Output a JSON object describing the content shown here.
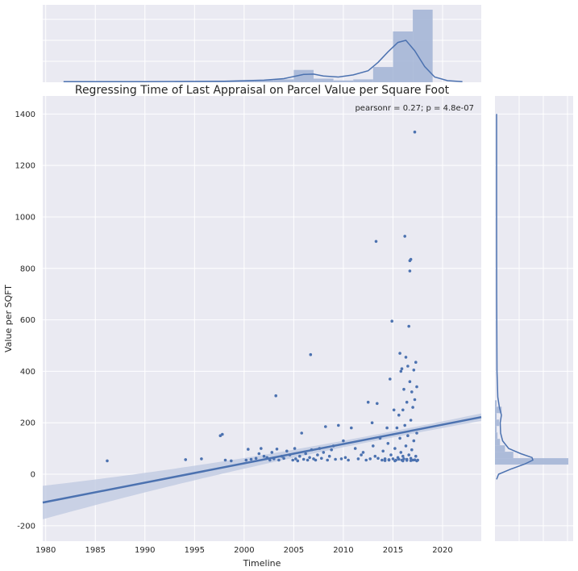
{
  "chart_data": {
    "type": "scatter",
    "title": "Regressing Time of Last Appraisal on Parcel Value per Square Foot",
    "xlabel": "Timeline",
    "ylabel": "Value per SQFT",
    "annotation": "pearsonr = 0.27; p = 4.8e-07",
    "xlim": [
      1979.7,
      2023.9
    ],
    "ylim": [
      -260,
      1470
    ],
    "xticks": [
      1980,
      1985,
      1990,
      1995,
      2000,
      2005,
      2010,
      2015,
      2020
    ],
    "yticks": [
      -200,
      0,
      200,
      400,
      600,
      800,
      1000,
      1200,
      1400
    ],
    "grid": true,
    "colors": {
      "background": "#eaeaf2",
      "grid": "#ffffff",
      "series": "#4c72b0",
      "band": "#c3cde3",
      "hist": "#a5b6d6"
    },
    "regression": {
      "x0": 1979.7,
      "y0": -110,
      "x1": 2023.9,
      "y1": 222,
      "ci_width_ends": 65,
      "ci_width_center": 12,
      "ci_center_x": 2014
    },
    "points": [
      [
        1986.2,
        52
      ],
      [
        1994.1,
        57
      ],
      [
        1995.7,
        60
      ],
      [
        1997.6,
        150
      ],
      [
        1997.8,
        155
      ],
      [
        1998.1,
        55
      ],
      [
        1998.7,
        52
      ],
      [
        2000.2,
        55
      ],
      [
        2000.4,
        97
      ],
      [
        2000.7,
        58
      ],
      [
        2001.2,
        62
      ],
      [
        2001.5,
        80
      ],
      [
        2001.7,
        100
      ],
      [
        2002.0,
        70
      ],
      [
        2002.3,
        65
      ],
      [
        2002.6,
        55
      ],
      [
        2002.8,
        85
      ],
      [
        2003.0,
        60
      ],
      [
        2003.2,
        305
      ],
      [
        2003.3,
        98
      ],
      [
        2003.5,
        55
      ],
      [
        2003.8,
        70
      ],
      [
        2004.0,
        62
      ],
      [
        2004.3,
        90
      ],
      [
        2004.6,
        75
      ],
      [
        2004.9,
        55
      ],
      [
        2005.1,
        100
      ],
      [
        2005.2,
        60
      ],
      [
        2005.4,
        52
      ],
      [
        2005.6,
        70
      ],
      [
        2005.8,
        160
      ],
      [
        2006.0,
        58
      ],
      [
        2006.2,
        80
      ],
      [
        2006.4,
        55
      ],
      [
        2006.6,
        65
      ],
      [
        2006.7,
        465
      ],
      [
        2006.8,
        95
      ],
      [
        2007.0,
        60
      ],
      [
        2007.2,
        55
      ],
      [
        2007.4,
        75
      ],
      [
        2007.6,
        100
      ],
      [
        2007.8,
        62
      ],
      [
        2008.0,
        85
      ],
      [
        2008.2,
        185
      ],
      [
        2008.4,
        55
      ],
      [
        2008.6,
        70
      ],
      [
        2008.8,
        95
      ],
      [
        2009.0,
        110
      ],
      [
        2009.2,
        58
      ],
      [
        2009.5,
        190
      ],
      [
        2009.8,
        60
      ],
      [
        2010.0,
        130
      ],
      [
        2010.2,
        65
      ],
      [
        2010.5,
        55
      ],
      [
        2010.8,
        180
      ],
      [
        2011.2,
        100
      ],
      [
        2011.5,
        60
      ],
      [
        2011.8,
        75
      ],
      [
        2012.0,
        85
      ],
      [
        2012.3,
        55
      ],
      [
        2012.5,
        280
      ],
      [
        2012.7,
        60
      ],
      [
        2012.9,
        200
      ],
      [
        2013.0,
        110
      ],
      [
        2013.2,
        70
      ],
      [
        2013.3,
        905
      ],
      [
        2013.4,
        275
      ],
      [
        2013.5,
        62
      ],
      [
        2013.7,
        140
      ],
      [
        2013.9,
        55
      ],
      [
        2014.0,
        90
      ],
      [
        2014.2,
        60
      ],
      [
        2014.4,
        180
      ],
      [
        2014.5,
        120
      ],
      [
        2014.6,
        55
      ],
      [
        2014.7,
        370
      ],
      [
        2014.8,
        75
      ],
      [
        2014.9,
        595
      ],
      [
        2015.0,
        60
      ],
      [
        2015.1,
        250
      ],
      [
        2015.2,
        100
      ],
      [
        2015.3,
        55
      ],
      [
        2015.4,
        180
      ],
      [
        2015.5,
        65
      ],
      [
        2015.6,
        230
      ],
      [
        2015.7,
        470
      ],
      [
        2015.7,
        140
      ],
      [
        2015.8,
        400
      ],
      [
        2015.8,
        85
      ],
      [
        2015.9,
        410
      ],
      [
        2015.9,
        55
      ],
      [
        2016.0,
        250
      ],
      [
        2016.0,
        70
      ],
      [
        2016.1,
        330
      ],
      [
        2016.1,
        60
      ],
      [
        2016.2,
        925
      ],
      [
        2016.2,
        190
      ],
      [
        2016.3,
        455
      ],
      [
        2016.3,
        110
      ],
      [
        2016.4,
        280
      ],
      [
        2016.4,
        58
      ],
      [
        2016.5,
        420
      ],
      [
        2016.5,
        150
      ],
      [
        2016.6,
        575
      ],
      [
        2016.6,
        75
      ],
      [
        2016.7,
        830
      ],
      [
        2016.7,
        790
      ],
      [
        2016.7,
        360
      ],
      [
        2016.8,
        835
      ],
      [
        2016.8,
        210
      ],
      [
        2016.8,
        62
      ],
      [
        2016.9,
        320
      ],
      [
        2016.9,
        95
      ],
      [
        2017.0,
        260
      ],
      [
        2017.0,
        55
      ],
      [
        2017.1,
        405
      ],
      [
        2017.1,
        130
      ],
      [
        2017.2,
        1330
      ],
      [
        2017.2,
        290
      ],
      [
        2017.3,
        435
      ],
      [
        2017.3,
        70
      ],
      [
        2017.4,
        340
      ],
      [
        2017.4,
        160
      ],
      [
        2017.5,
        55
      ],
      [
        2015.2,
        52
      ],
      [
        2015.6,
        58
      ],
      [
        2016.0,
        52
      ],
      [
        2016.4,
        54
      ],
      [
        2016.8,
        53
      ],
      [
        2017.2,
        56
      ],
      [
        2017.4,
        52
      ],
      [
        2014.6,
        57
      ],
      [
        2014.2,
        53
      ]
    ],
    "x_hist": {
      "bins": [
        1986,
        1988,
        1990,
        1992,
        1994,
        1996,
        1998,
        2000,
        2002,
        2004,
        2006,
        2008,
        2010,
        2012,
        2014,
        2016,
        2018
      ],
      "heights": [
        0.2,
        0,
        0,
        0,
        0.5,
        0.5,
        1.5,
        2,
        3,
        4,
        17,
        5,
        2.5,
        4,
        21,
        70,
        100
      ]
    },
    "x_kde": [
      [
        1981.8,
        0.01
      ],
      [
        1990,
        0.012
      ],
      [
        1998,
        0.02
      ],
      [
        2002,
        0.04
      ],
      [
        2004,
        0.07
      ],
      [
        2006,
        0.15
      ],
      [
        2007,
        0.155
      ],
      [
        2008,
        0.12
      ],
      [
        2009.5,
        0.1
      ],
      [
        2011,
        0.14
      ],
      [
        2012.5,
        0.22
      ],
      [
        2013.5,
        0.38
      ],
      [
        2014.5,
        0.58
      ],
      [
        2015.5,
        0.76
      ],
      [
        2016.3,
        0.8
      ],
      [
        2017.2,
        0.6
      ],
      [
        2018.2,
        0.3
      ],
      [
        2019.2,
        0.1
      ],
      [
        2020.5,
        0.03
      ],
      [
        2022,
        0.01
      ]
    ],
    "y_hist": {
      "bins": [
        50,
        75,
        100,
        125,
        150,
        175,
        200,
        225,
        250,
        275
      ],
      "widths": [
        88,
        22,
        12,
        6,
        3,
        2,
        5,
        2,
        8,
        2
      ]
    },
    "y_kde": [
      [
        -20,
        0.0
      ],
      [
        0,
        0.05
      ],
      [
        20,
        0.35
      ],
      [
        40,
        0.7
      ],
      [
        55,
        0.9
      ],
      [
        65,
        0.88
      ],
      [
        80,
        0.6
      ],
      [
        100,
        0.3
      ],
      [
        130,
        0.15
      ],
      [
        160,
        0.1
      ],
      [
        200,
        0.09
      ],
      [
        230,
        0.12
      ],
      [
        260,
        0.07
      ],
      [
        300,
        0.03
      ],
      [
        400,
        0.01
      ],
      [
        700,
        0.003
      ],
      [
        1000,
        0.001
      ],
      [
        1400,
        0.0
      ]
    ]
  }
}
